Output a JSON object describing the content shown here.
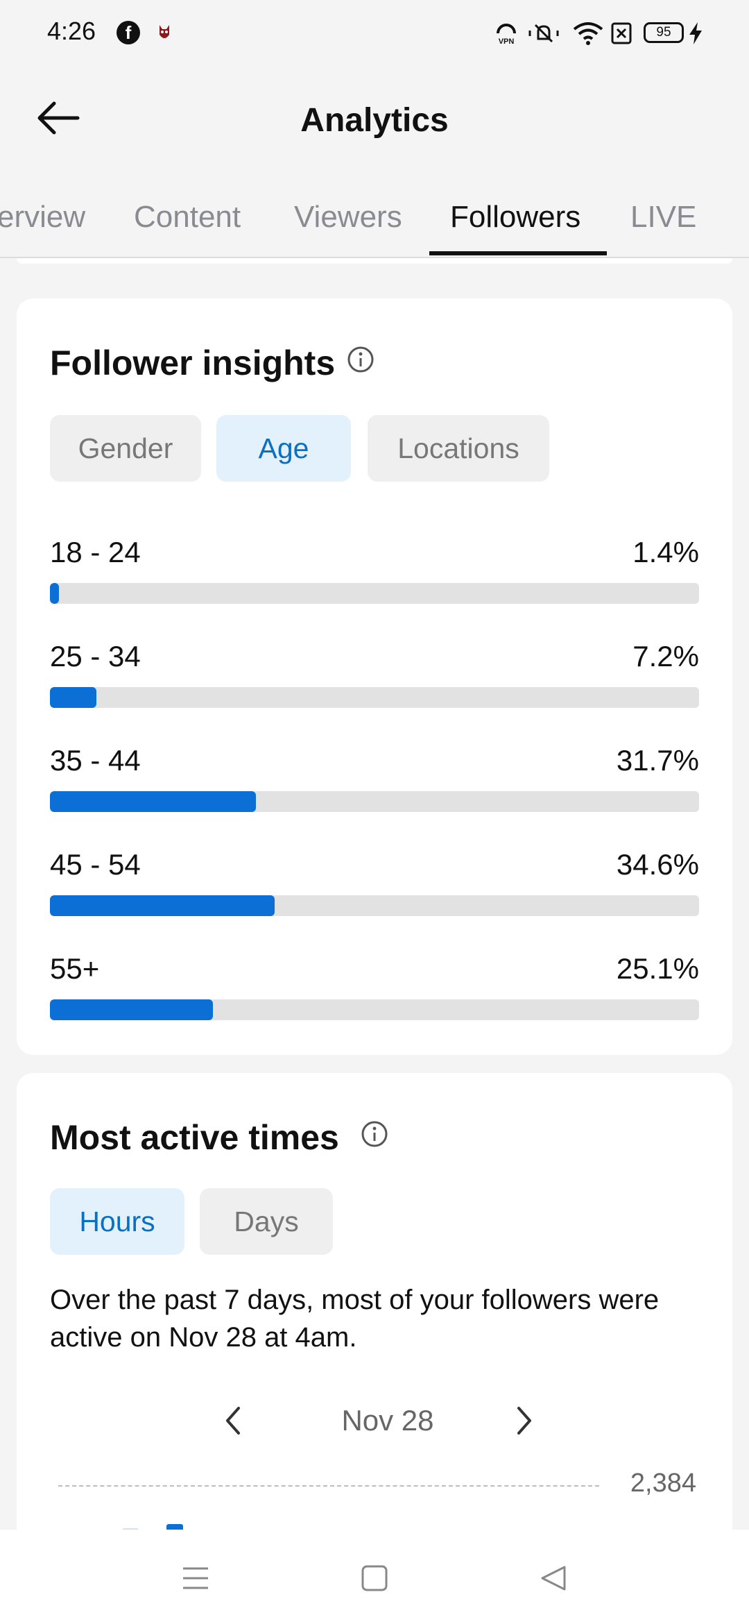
{
  "status_bar": {
    "time": "4:26",
    "battery": "95",
    "icons": [
      "facebook-icon",
      "app-notification-icon",
      "vpn-icon",
      "mute-icon",
      "wifi-icon",
      "sim-off-icon",
      "battery-icon",
      "charging-icon"
    ]
  },
  "header": {
    "title": "Analytics",
    "back_icon": "arrow-left-icon"
  },
  "tabs": [
    {
      "label": "Overview",
      "shown_text": "erview",
      "active": false
    },
    {
      "label": "Content",
      "active": false
    },
    {
      "label": "Viewers",
      "active": false
    },
    {
      "label": "Followers",
      "active": true
    },
    {
      "label": "LIVE",
      "active": false
    }
  ],
  "follower_insights": {
    "title": "Follower insights",
    "info_icon": "info-icon",
    "chips": [
      {
        "label": "Gender",
        "selected": false
      },
      {
        "label": "Age",
        "selected": true
      },
      {
        "label": "Locations",
        "selected": false
      }
    ],
    "age_groups": [
      {
        "label": "18 - 24",
        "percent_text": "1.4%",
        "percent": 1.4
      },
      {
        "label": "25 - 34",
        "percent_text": "7.2%",
        "percent": 7.2
      },
      {
        "label": "35 - 44",
        "percent_text": "31.7%",
        "percent": 31.7
      },
      {
        "label": "45 - 54",
        "percent_text": "34.6%",
        "percent": 34.6
      },
      {
        "label": "55+",
        "percent_text": "25.1%",
        "percent": 25.1
      }
    ]
  },
  "most_active": {
    "title": "Most active times",
    "info_icon": "info-icon",
    "chips": [
      {
        "label": "Hours",
        "selected": true
      },
      {
        "label": "Days",
        "selected": false
      }
    ],
    "description": "Over the past 7 days, most of your followers were active on Nov 28 at 4am.",
    "date": "Nov 28",
    "max_value": "2,384",
    "accent_color": "#0b6fd6"
  },
  "nav_bar": {
    "icons": [
      "menu-icon",
      "home-icon",
      "back-triangle-icon"
    ]
  }
}
